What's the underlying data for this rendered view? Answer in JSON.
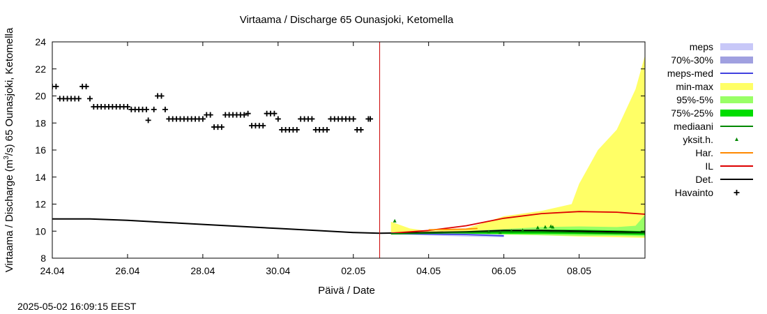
{
  "chart_data": {
    "type": "line",
    "title": "Virtaama / Discharge  65 Ounasjoki, Ketomella",
    "xlabel": "Päivä / Date",
    "ylabel": "Virtaama / Discharge (m³/s)  65 Ounasjoki, Ketomella",
    "ylabel_parts": {
      "pre": "Virtaama / Discharge (m",
      "sup": "3",
      "post": "/s)  65 Ounasjoki, Ketomella"
    },
    "footer": "2025-05-02 16:09:15 EEST",
    "xlim": [
      0,
      15.75
    ],
    "ylim": [
      8,
      24
    ],
    "x_unit": "days since 24.04",
    "now_x": 8.7,
    "x_ticks": [
      {
        "x": 0,
        "label": "24.04"
      },
      {
        "x": 2,
        "label": "26.04"
      },
      {
        "x": 4,
        "label": "28.04"
      },
      {
        "x": 6,
        "label": "30.04"
      },
      {
        "x": 8,
        "label": "02.05"
      },
      {
        "x": 10,
        "label": "04.05"
      },
      {
        "x": 12,
        "label": "06.05"
      },
      {
        "x": 14,
        "label": "08.05"
      }
    ],
    "y_ticks": [
      8,
      10,
      12,
      14,
      16,
      18,
      20,
      22,
      24
    ],
    "legend": [
      {
        "key": "meps",
        "label": "meps",
        "kind": "box",
        "color": "#c8c8f8"
      },
      {
        "key": "meps7030",
        "label": "70%-30%",
        "kind": "box",
        "color": "#a0a0e0"
      },
      {
        "key": "meps_med",
        "label": "meps-med",
        "kind": "line",
        "color": "#4040e0"
      },
      {
        "key": "minmax",
        "label": "min-max",
        "kind": "box",
        "color": "#ffff66"
      },
      {
        "key": "p95_5",
        "label": "95%-5%",
        "kind": "box",
        "color": "#99ff66"
      },
      {
        "key": "p75_25",
        "label": "75%-25%",
        "kind": "box",
        "color": "#00dd00"
      },
      {
        "key": "mediaani",
        "label": "mediaani",
        "kind": "line",
        "color": "#008800"
      },
      {
        "key": "yksit",
        "label": "yksit.h.",
        "kind": "dot",
        "color": "#008800"
      },
      {
        "key": "har",
        "label": "Har.",
        "kind": "line",
        "color": "#ff8800"
      },
      {
        "key": "il",
        "label": "IL",
        "kind": "line",
        "color": "#dd0000"
      },
      {
        "key": "det",
        "label": "Det.",
        "kind": "line",
        "color": "#000000"
      },
      {
        "key": "havainto",
        "label": "Havainto",
        "kind": "plus",
        "color": "#000000"
      }
    ],
    "series": [
      {
        "name": "Det.",
        "color": "#000000",
        "points": [
          [
            0,
            10.9
          ],
          [
            1,
            10.9
          ],
          [
            2,
            10.8
          ],
          [
            3,
            10.65
          ],
          [
            4,
            10.5
          ],
          [
            5,
            10.35
          ],
          [
            6,
            10.2
          ],
          [
            7,
            10.05
          ],
          [
            8,
            9.9
          ],
          [
            8.7,
            9.85
          ],
          [
            10,
            9.9
          ],
          [
            11,
            9.95
          ],
          [
            12,
            10.05
          ],
          [
            13,
            10.05
          ],
          [
            14,
            10.0
          ],
          [
            15,
            9.95
          ],
          [
            15.75,
            9.9
          ]
        ]
      },
      {
        "name": "IL",
        "color": "#dd0000",
        "points": [
          [
            9,
            9.85
          ],
          [
            10,
            10.05
          ],
          [
            11,
            10.4
          ],
          [
            12,
            10.95
          ],
          [
            13,
            11.3
          ],
          [
            14,
            11.45
          ],
          [
            15,
            11.4
          ],
          [
            15.75,
            11.25
          ]
        ]
      },
      {
        "name": "Har.",
        "color": "#ff8800",
        "points": [
          [
            10,
            10.1
          ],
          [
            11,
            10.15
          ],
          [
            11.3,
            10.2
          ]
        ]
      },
      {
        "name": "meps-med",
        "color": "#4040e0",
        "points": [
          [
            9,
            9.82
          ],
          [
            10,
            9.78
          ],
          [
            11,
            9.75
          ],
          [
            12,
            9.65
          ]
        ]
      },
      {
        "name": "mediaani",
        "color": "#008800",
        "points": [
          [
            9,
            9.8
          ],
          [
            10,
            9.85
          ],
          [
            11,
            9.9
          ],
          [
            12,
            9.95
          ],
          [
            13,
            9.95
          ],
          [
            14,
            9.9
          ],
          [
            15,
            9.85
          ],
          [
            15.75,
            9.85
          ]
        ]
      }
    ],
    "bands": [
      {
        "name": "min-max",
        "color": "#ffff66",
        "upper": [
          [
            9,
            10.7
          ],
          [
            9.5,
            10.2
          ],
          [
            10,
            10.0
          ],
          [
            11,
            10.2
          ],
          [
            12,
            11.1
          ],
          [
            13,
            11.5
          ],
          [
            13.8,
            12.0
          ],
          [
            14,
            13.5
          ],
          [
            14.5,
            16.0
          ],
          [
            15,
            17.5
          ],
          [
            15.5,
            20.5
          ],
          [
            15.75,
            23.0
          ]
        ],
        "lower": [
          [
            15.75,
            9.5
          ],
          [
            15,
            9.55
          ],
          [
            14,
            9.6
          ],
          [
            13,
            9.7
          ],
          [
            12,
            9.75
          ],
          [
            11,
            9.75
          ],
          [
            10,
            9.75
          ],
          [
            9,
            9.75
          ]
        ]
      },
      {
        "name": "95%-5%",
        "color": "#99ff66",
        "upper": [
          [
            9,
            9.9
          ],
          [
            10,
            9.95
          ],
          [
            11,
            10.0
          ],
          [
            12,
            10.15
          ],
          [
            13,
            10.3
          ],
          [
            14,
            10.35
          ],
          [
            15,
            10.3
          ],
          [
            15.5,
            10.4
          ],
          [
            15.75,
            11.2
          ]
        ],
        "lower": [
          [
            15.75,
            9.6
          ],
          [
            15,
            9.65
          ],
          [
            14,
            9.65
          ],
          [
            13,
            9.7
          ],
          [
            12,
            9.75
          ],
          [
            11,
            9.75
          ],
          [
            10,
            9.75
          ],
          [
            9,
            9.75
          ]
        ]
      },
      {
        "name": "75%-25%",
        "color": "#00dd00",
        "upper": [
          [
            9,
            9.84
          ],
          [
            10,
            9.88
          ],
          [
            11,
            9.93
          ],
          [
            12,
            10.0
          ],
          [
            13,
            10.1
          ],
          [
            14,
            10.1
          ],
          [
            15,
            10.05
          ],
          [
            15.75,
            10.0
          ]
        ],
        "lower": [
          [
            15.75,
            9.72
          ],
          [
            15,
            9.75
          ],
          [
            14,
            9.78
          ],
          [
            13,
            9.8
          ],
          [
            12,
            9.8
          ],
          [
            11,
            9.8
          ],
          [
            10,
            9.78
          ],
          [
            9,
            9.78
          ]
        ]
      },
      {
        "name": "meps",
        "color": "#c8c8f8",
        "upper": [
          [
            9,
            9.86
          ],
          [
            10,
            9.84
          ],
          [
            11,
            9.82
          ],
          [
            12,
            9.75
          ]
        ],
        "lower": [
          [
            12,
            9.55
          ],
          [
            11,
            9.6
          ],
          [
            10,
            9.68
          ],
          [
            9,
            9.76
          ]
        ]
      }
    ],
    "yksit": [
      [
        9.1,
        10.75
      ],
      [
        11.6,
        9.95
      ],
      [
        11.9,
        9.9
      ],
      [
        12.2,
        10.0
      ],
      [
        12.5,
        10.05
      ],
      [
        12.9,
        10.25
      ],
      [
        13.1,
        10.3
      ],
      [
        13.25,
        10.35
      ],
      [
        13.3,
        10.3
      ]
    ],
    "havainto": [
      [
        0.0,
        20.7
      ],
      [
        0.1,
        20.7
      ],
      [
        0.2,
        19.8
      ],
      [
        0.3,
        19.8
      ],
      [
        0.4,
        19.8
      ],
      [
        0.5,
        19.8
      ],
      [
        0.6,
        19.8
      ],
      [
        0.7,
        19.8
      ],
      [
        0.8,
        20.7
      ],
      [
        0.9,
        20.7
      ],
      [
        1.0,
        19.8
      ],
      [
        1.1,
        19.2
      ],
      [
        1.2,
        19.2
      ],
      [
        1.3,
        19.2
      ],
      [
        1.4,
        19.2
      ],
      [
        1.5,
        19.2
      ],
      [
        1.6,
        19.2
      ],
      [
        1.7,
        19.2
      ],
      [
        1.8,
        19.2
      ],
      [
        1.9,
        19.2
      ],
      [
        2.0,
        19.2
      ],
      [
        2.1,
        19.0
      ],
      [
        2.2,
        19.0
      ],
      [
        2.3,
        19.0
      ],
      [
        2.4,
        19.0
      ],
      [
        2.5,
        19.0
      ],
      [
        2.55,
        18.2
      ],
      [
        2.7,
        19.0
      ],
      [
        2.8,
        20.0
      ],
      [
        2.9,
        20.0
      ],
      [
        3.0,
        19.0
      ],
      [
        3.1,
        18.3
      ],
      [
        3.2,
        18.3
      ],
      [
        3.3,
        18.3
      ],
      [
        3.4,
        18.3
      ],
      [
        3.5,
        18.3
      ],
      [
        3.6,
        18.3
      ],
      [
        3.7,
        18.3
      ],
      [
        3.8,
        18.3
      ],
      [
        3.9,
        18.3
      ],
      [
        4.0,
        18.3
      ],
      [
        4.1,
        18.6
      ],
      [
        4.2,
        18.6
      ],
      [
        4.3,
        17.7
      ],
      [
        4.4,
        17.7
      ],
      [
        4.5,
        17.7
      ],
      [
        4.6,
        18.6
      ],
      [
        4.7,
        18.6
      ],
      [
        4.8,
        18.6
      ],
      [
        4.9,
        18.6
      ],
      [
        5.0,
        18.6
      ],
      [
        5.1,
        18.6
      ],
      [
        5.2,
        18.7
      ],
      [
        5.3,
        17.8
      ],
      [
        5.4,
        17.8
      ],
      [
        5.5,
        17.8
      ],
      [
        5.6,
        17.8
      ],
      [
        5.7,
        18.7
      ],
      [
        5.8,
        18.7
      ],
      [
        5.9,
        18.7
      ],
      [
        6.0,
        18.3
      ],
      [
        6.1,
        17.5
      ],
      [
        6.2,
        17.5
      ],
      [
        6.3,
        17.5
      ],
      [
        6.4,
        17.5
      ],
      [
        6.5,
        17.5
      ],
      [
        6.6,
        18.3
      ],
      [
        6.7,
        18.3
      ],
      [
        6.8,
        18.3
      ],
      [
        6.9,
        18.3
      ],
      [
        7.0,
        17.5
      ],
      [
        7.1,
        17.5
      ],
      [
        7.2,
        17.5
      ],
      [
        7.3,
        17.5
      ],
      [
        7.4,
        18.3
      ],
      [
        7.5,
        18.3
      ],
      [
        7.6,
        18.3
      ],
      [
        7.7,
        18.3
      ],
      [
        7.8,
        18.3
      ],
      [
        7.9,
        18.3
      ],
      [
        8.0,
        18.3
      ],
      [
        8.1,
        17.5
      ],
      [
        8.2,
        17.5
      ],
      [
        8.4,
        18.3
      ],
      [
        8.45,
        18.3
      ]
    ]
  }
}
